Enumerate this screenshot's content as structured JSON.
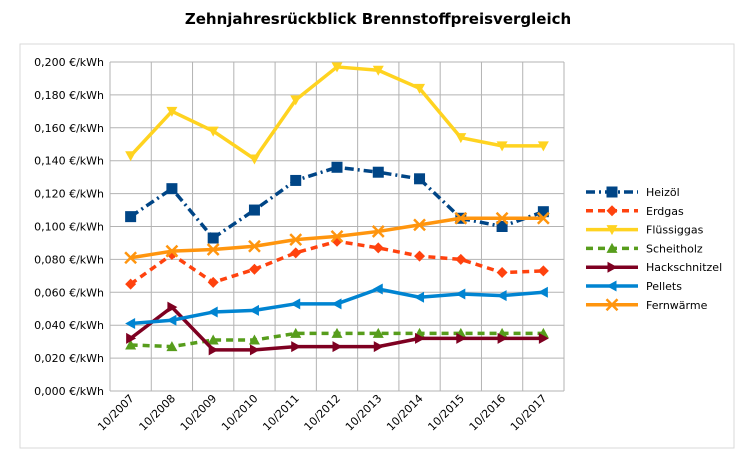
{
  "chart_data": {
    "type": "line",
    "title": "Zehnjahresrückblick Brennstoffpreisvergleich",
    "xlabel": "",
    "ylabel": "",
    "categories": [
      "10/2007",
      "10/2008",
      "10/2009",
      "10/2010",
      "10/2011",
      "10/2012",
      "10/2013",
      "10/2014",
      "10/2015",
      "10/2016",
      "10/2017"
    ],
    "ylim": [
      0,
      0.2
    ],
    "ytick_step": 0.02,
    "ytick_labels": [
      "0,000 €/kWh",
      "0,020 €/kWh",
      "0,040 €/kWh",
      "0,060 €/kWh",
      "0,080 €/kWh",
      "0,100 €/kWh",
      "0,120 €/kWh",
      "0,140 €/kWh",
      "0,160 €/kWh",
      "0,180 €/kWh",
      "0,200 €/kWh"
    ],
    "grid": true,
    "legend_position": "right",
    "series": [
      {
        "name": "Heizöl",
        "color": "#004586",
        "dash": "dash-dot",
        "marker": "square",
        "values": [
          0.106,
          0.123,
          0.093,
          0.11,
          0.128,
          0.136,
          0.133,
          0.129,
          0.105,
          0.1,
          0.109
        ]
      },
      {
        "name": "Erdgas",
        "color": "#ff420e",
        "dash": "dash",
        "marker": "diamond",
        "values": [
          0.065,
          0.083,
          0.066,
          0.074,
          0.084,
          0.091,
          0.087,
          0.082,
          0.08,
          0.072,
          0.073
        ]
      },
      {
        "name": "Flüssiggas",
        "color": "#ffd320",
        "dash": "solid",
        "marker": "triangle-down",
        "values": [
          0.143,
          0.17,
          0.158,
          0.141,
          0.177,
          0.197,
          0.195,
          0.184,
          0.154,
          0.149,
          0.149
        ]
      },
      {
        "name": "Scheitholz",
        "color": "#579d1c",
        "dash": "dash",
        "marker": "triangle-up",
        "values": [
          0.028,
          0.027,
          0.031,
          0.031,
          0.035,
          0.035,
          0.035,
          0.035,
          0.035,
          0.035,
          0.035
        ]
      },
      {
        "name": "Hackschnitzel",
        "color": "#7e0021",
        "dash": "solid",
        "marker": "triangle-right",
        "values": [
          0.032,
          0.051,
          0.025,
          0.025,
          0.027,
          0.027,
          0.027,
          0.032,
          0.032,
          0.032,
          0.032
        ]
      },
      {
        "name": "Pellets",
        "color": "#0084d1",
        "dash": "solid",
        "marker": "triangle-left",
        "values": [
          0.041,
          0.043,
          0.048,
          0.049,
          0.053,
          0.053,
          0.062,
          0.057,
          0.059,
          0.058,
          0.06
        ]
      },
      {
        "name": "Fernwärme",
        "color": "#ff950e",
        "dash": "solid",
        "marker": "cross",
        "values": [
          0.081,
          0.085,
          0.086,
          0.088,
          0.092,
          0.094,
          0.097,
          0.101,
          0.105,
          0.105,
          0.105
        ]
      }
    ]
  }
}
